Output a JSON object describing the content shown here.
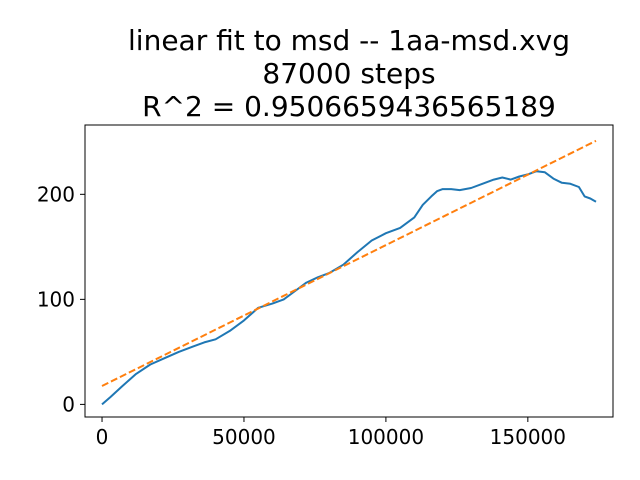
{
  "chart_data": {
    "type": "line",
    "title": [
      "linear fit to msd -- 1aa-msd.xvg",
      "87000 steps",
      "R^2 = 0.9506659436565189"
    ],
    "xlabel": "",
    "ylabel": "",
    "xlim": [
      -6000,
      180000
    ],
    "ylim": [
      -12,
      266
    ],
    "xticks": [
      0,
      50000,
      100000,
      150000
    ],
    "xtick_labels": [
      "0",
      "50000",
      "100000",
      "150000"
    ],
    "yticks": [
      0,
      100,
      200
    ],
    "ytick_labels": [
      "0",
      "100",
      "200"
    ],
    "grid": false,
    "legend": "none",
    "series": [
      {
        "color": "#1f77b4",
        "style": "solid",
        "x": [
          0,
          3000,
          7000,
          12000,
          17000,
          22000,
          27000,
          32000,
          36000,
          40000,
          45000,
          50000,
          55000,
          60000,
          64000,
          68000,
          72000,
          76000,
          80000,
          85000,
          90000,
          95000,
          100000,
          105000,
          110000,
          113000,
          116000,
          118000,
          120000,
          123000,
          126000,
          130000,
          134000,
          138000,
          141000,
          144000,
          147000,
          150000,
          153000,
          156000,
          159000,
          162000,
          165000,
          168000,
          170000,
          172000,
          174000
        ],
        "y": [
          0,
          7,
          17,
          29,
          38,
          44,
          50,
          55,
          59,
          62,
          70,
          80,
          92,
          96,
          100,
          108,
          116,
          121,
          125,
          133,
          145,
          156,
          163,
          168,
          178,
          190,
          198,
          203,
          205,
          205,
          204,
          206,
          210,
          214,
          216,
          214,
          217,
          219,
          222,
          221,
          215,
          211,
          210,
          207,
          198,
          196,
          193
        ]
      },
      {
        "color": "#ff7f0e",
        "style": "dashed",
        "x": [
          0,
          174000
        ],
        "y": [
          17.5,
          251
        ]
      }
    ]
  }
}
